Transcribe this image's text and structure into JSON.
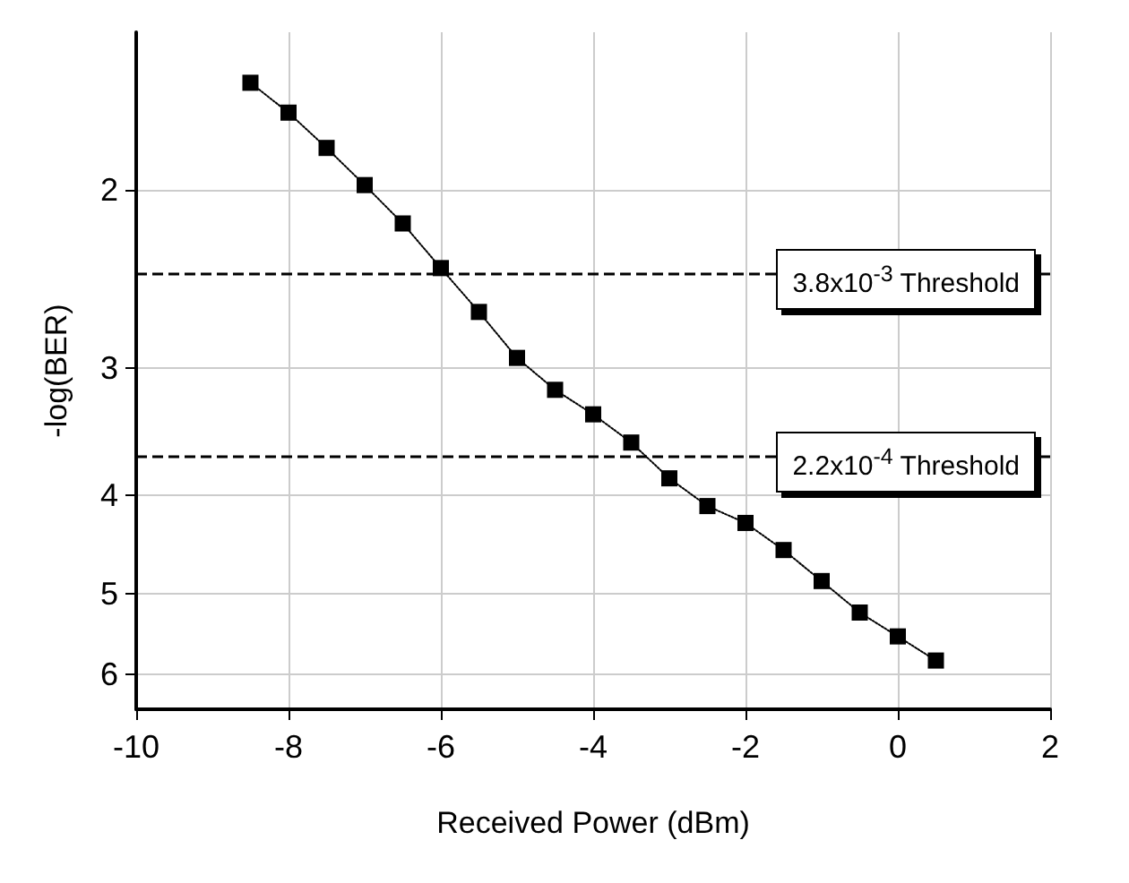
{
  "chart_data": {
    "type": "line",
    "xlabel": "Received Power (dBm)",
    "ylabel": "-log(BER)",
    "x": [
      -8.5,
      -8,
      -7.5,
      -7,
      -6.5,
      -6,
      -5.5,
      -5,
      -4.5,
      -4,
      -3.5,
      -3,
      -2.5,
      -2,
      -1.5,
      -1,
      -0.5,
      0,
      0.5
    ],
    "series": [
      {
        "color": "#000000",
        "values": [
          1.57,
          1.68,
          1.82,
          1.98,
          2.16,
          2.39,
          2.64,
          2.93,
          3.15,
          3.33,
          3.55,
          3.85,
          4.1,
          4.26,
          4.53,
          4.86,
          5.22,
          5.51,
          5.82
        ]
      }
    ],
    "xlim": [
      -10,
      2
    ],
    "xticks": [
      -10,
      -8,
      -6,
      -4,
      -2,
      0,
      2
    ],
    "ylim": [
      6.5,
      1.4
    ],
    "yticks": [
      2,
      3,
      4,
      5,
      6
    ],
    "log": "y",
    "ref_lines": [
      {
        "axis": "y",
        "value": 2.42,
        "label": "3.8x10$^{-3}$ Threshold",
        "color": "#000000",
        "line_style": "dashed"
      },
      {
        "axis": "y",
        "value": 3.66,
        "label": "2.2x10$^{-4}$ Threshold",
        "color": "#000000",
        "line_style": "dashed"
      }
    ],
    "grid": true,
    "marker": "square",
    "line_style": "dotted"
  }
}
